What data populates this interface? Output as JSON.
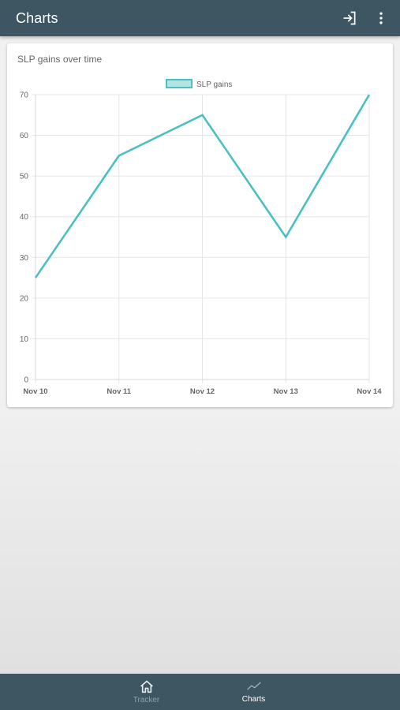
{
  "app_bar": {
    "title": "Charts",
    "login_icon": "login-icon",
    "menu_icon": "more-vert-icon"
  },
  "card": {
    "title": "SLP gains over time"
  },
  "chart_data": {
    "type": "line",
    "title": "",
    "xlabel": "",
    "ylabel": "",
    "categories": [
      "Nov 10",
      "Nov 11",
      "Nov 12",
      "Nov 13",
      "Nov 14"
    ],
    "series": [
      {
        "name": "SLP gains",
        "values": [
          25,
          55,
          65,
          35,
          70
        ],
        "color": "#4bc0c0",
        "fill": "#b4e3e3"
      }
    ],
    "ylim": [
      0,
      70
    ],
    "yticks": [
      0,
      10,
      20,
      30,
      40,
      50,
      60,
      70
    ],
    "grid": true,
    "legend": "top-center"
  },
  "bottom_nav": {
    "items": [
      {
        "label": "Tracker",
        "icon": "home-icon",
        "active": false
      },
      {
        "label": "Charts",
        "icon": "chart-line-icon",
        "active": true
      }
    ]
  },
  "colors": {
    "bar": "#3d5662",
    "line": "#4bc0c0",
    "grid": "#e6e6e6"
  }
}
